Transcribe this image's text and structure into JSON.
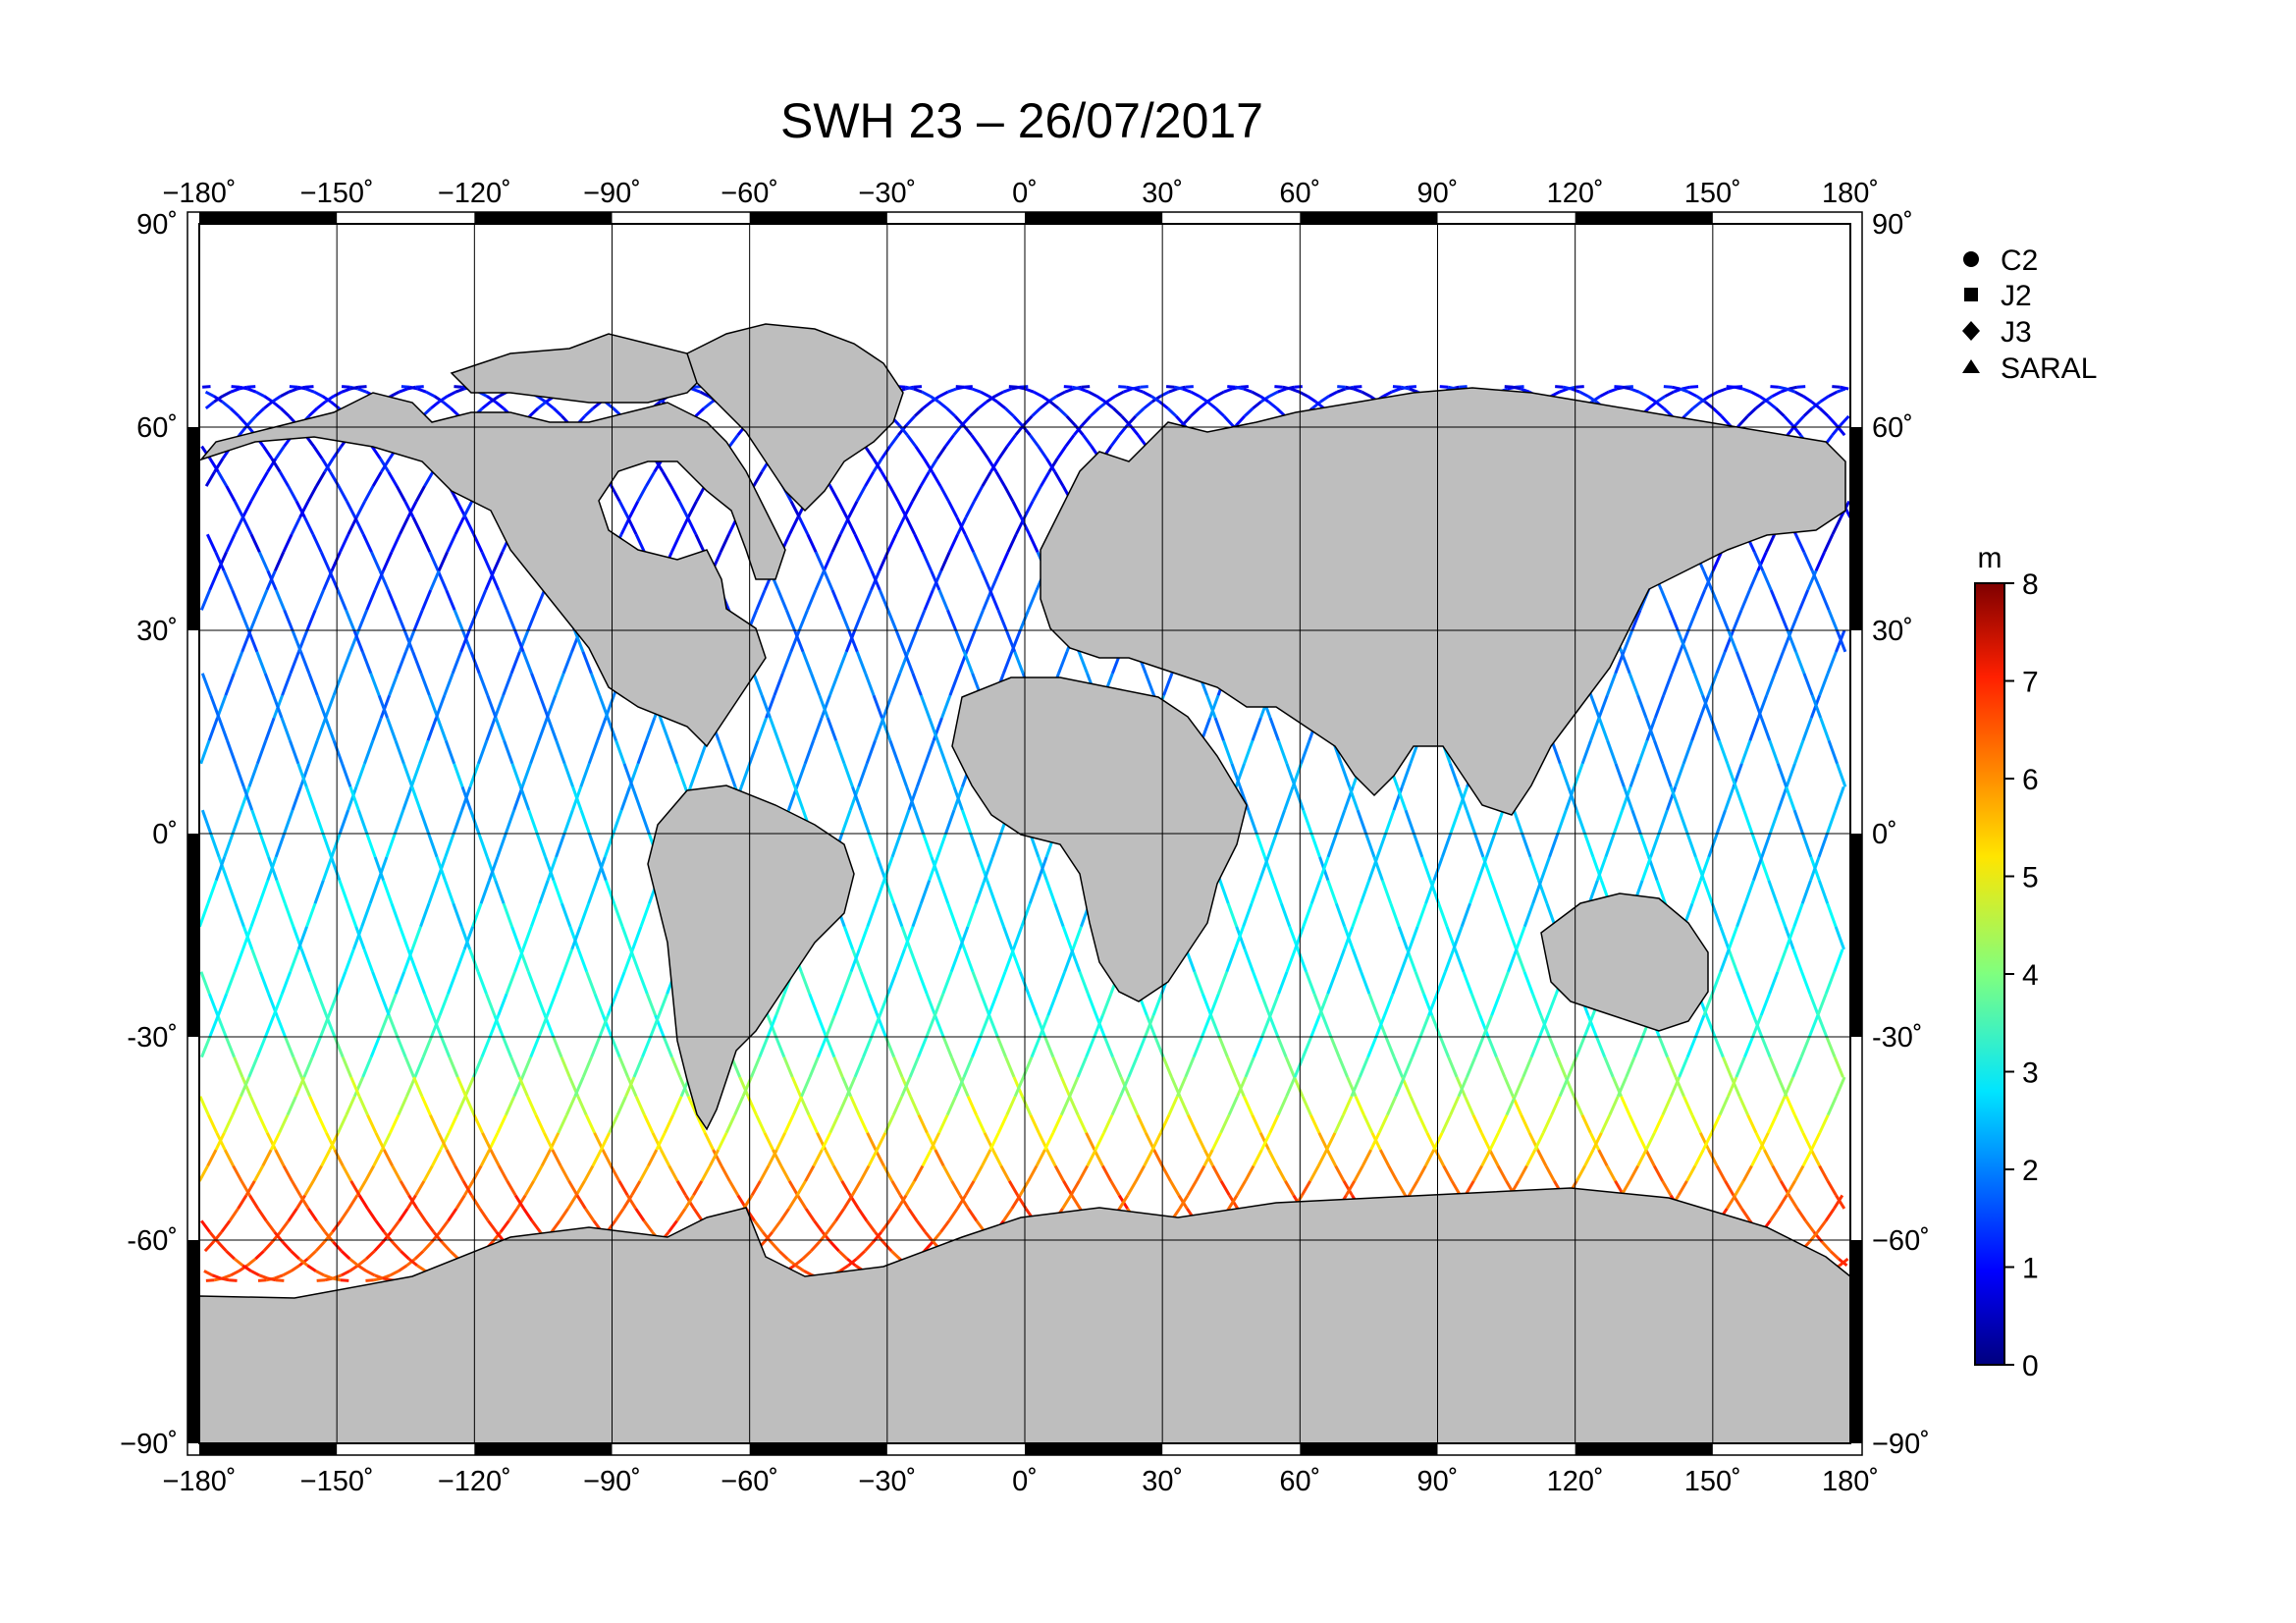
{
  "title": "SWH 23 – 26/07/2017",
  "map": {
    "projection": "equirectangular",
    "lon_range": [
      -180,
      180
    ],
    "lat_range": [
      -90,
      90
    ],
    "grid_lon_step": 30,
    "grid_lat_step": 30,
    "land_color": "#bebebe",
    "ocean_color": "#ffffff",
    "coast_color": "#000000",
    "top_labels": [
      "−180˚",
      "−150˚",
      "−120˚",
      "−90˚",
      "−60˚",
      "−30˚",
      "0˚",
      "30˚",
      "60˚",
      "90˚",
      "120˚",
      "150˚",
      "180˚"
    ],
    "bottom_labels": [
      "−180˚",
      "−150˚",
      "−120˚",
      "−90˚",
      "−60˚",
      "−30˚",
      "0˚",
      "30˚",
      "60˚",
      "90˚",
      "120˚",
      "150˚",
      "180˚"
    ],
    "left_labels": [
      "90˚",
      "60˚",
      "30˚",
      "0˚",
      "-30˚",
      "-60˚",
      "−90˚"
    ],
    "right_labels": [
      "90˚",
      "60˚",
      "30˚",
      "0˚",
      "-30˚",
      "−60˚",
      "−90˚"
    ]
  },
  "legend": {
    "items": [
      {
        "label": "C2",
        "marker": "circle"
      },
      {
        "label": "J2",
        "marker": "square"
      },
      {
        "label": "J3",
        "marker": "diamond"
      },
      {
        "label": "SARAL",
        "marker": "triangle"
      }
    ]
  },
  "colorbar": {
    "unit": "m",
    "min": 0,
    "max": 8,
    "tick_labels": [
      "0",
      "1",
      "2",
      "3",
      "4",
      "5",
      "6",
      "7",
      "8"
    ],
    "colormap": "jet"
  },
  "tracks": {
    "description_value_range_m": [
      0,
      8
    ],
    "count_estimate": 60
  }
}
